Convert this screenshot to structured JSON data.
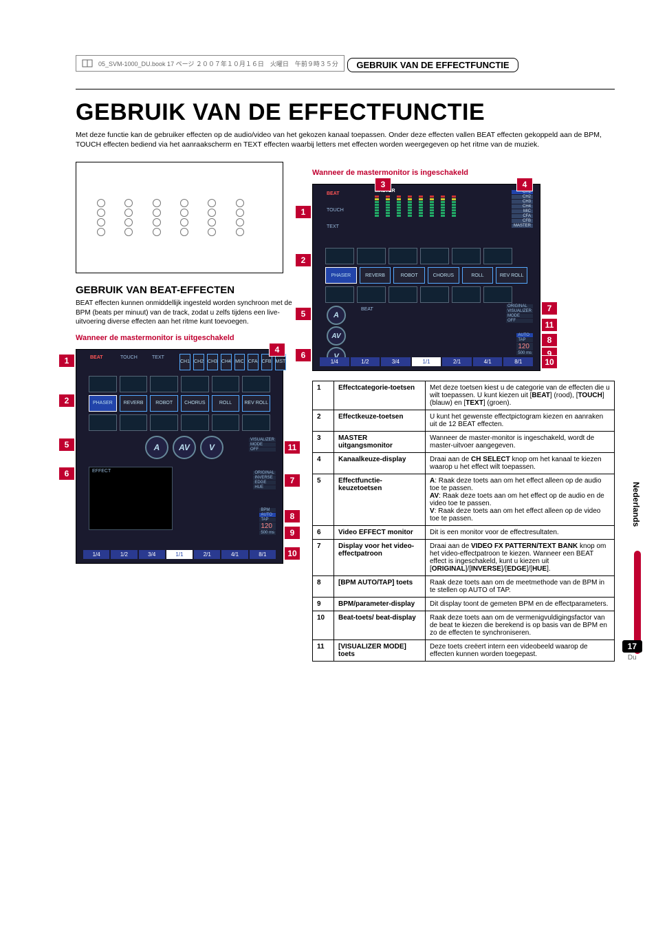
{
  "print_header": {
    "text": "05_SVM-1000_DU.book  17 ページ  ２００７年１０月１６日　火曜日　午前９時３５分"
  },
  "section_tab": "GEBRUIK VAN DE EFFECTFUNCTIE",
  "title": "GEBRUIK VAN DE EFFECTFUNCTIE",
  "intro": "Met deze functie kan de gebruiker effecten op de audio/video van het gekozen kanaal toepassen. Onder deze effecten vallen BEAT effecten gekoppeld aan de BPM, TOUCH effecten bediend via het aanraakscherm en TEXT effecten waarbij letters met effecten worden weergegeven op het ritme van de muziek.",
  "subhead": "GEBRUIK VAN BEAT-EFFECTEN",
  "subhead_body": "BEAT effecten kunnen onmiddellijk ingesteld worden synchroon met de BPM (beats per minuut) van de track, zodat u zelfs tijdens een live-uitvoering diverse effecten aan het ritme kunt toevoegen.",
  "red_off": "Wanneer de mastermonitor is uitgeschakeld",
  "red_on": "Wanneer de mastermonitor is ingeschakeld",
  "diagram_small": {
    "tabs": {
      "beat": "BEAT",
      "touch": "TOUCH",
      "text": "TEXT"
    },
    "channels": [
      "CH1",
      "CH2",
      "CH3",
      "CH4",
      "MIC",
      "CFA",
      "CFB",
      "MST"
    ],
    "effects": [
      "PHASER",
      "REVERB",
      "ROBOT",
      "CHORUS",
      "ROLL",
      "REV ROLL"
    ],
    "avv": [
      "A",
      "AV",
      "V"
    ],
    "vis": [
      "VISUALIZER",
      "MODE",
      "OFF",
      "ORIGINAL",
      "INVERSE",
      "EDGE",
      "HUE"
    ],
    "bpm_block": [
      "BPM",
      "AUTO",
      "TAP",
      "120",
      "500 ms"
    ],
    "effect_label": "EFFECT",
    "beats": [
      "1/4",
      "1/2",
      "3/4",
      "1/1",
      "2/1",
      "4/1",
      "8/1"
    ]
  },
  "diagram_large": {
    "tabs": {
      "beat": "BEAT",
      "touch": "TOUCH",
      "text": "TEXT"
    },
    "master": "MASTER",
    "channels": [
      "CH1",
      "CH2",
      "CH3",
      "CH4",
      "MIC",
      "CFA",
      "CFB",
      "MASTER"
    ],
    "effects": [
      "PHASER",
      "REVERB",
      "ROBOT",
      "CHORUS",
      "ROLL",
      "REV ROLL"
    ],
    "avv": [
      "A",
      "AV",
      "V"
    ],
    "vis": [
      "ORIGINAL",
      "VISUALIZER",
      "MODE",
      "OFF"
    ],
    "bpm_block": [
      "BPM",
      "AUTO",
      "TAP",
      "120",
      "500 ms"
    ],
    "beat_label": "BEAT",
    "beats": [
      "1/4",
      "1/2",
      "3/4",
      "1/1",
      "2/1",
      "4/1",
      "8/1"
    ]
  },
  "callouts_small": [
    "1",
    "2",
    "4",
    "5",
    "6",
    "7",
    "8",
    "9",
    "10",
    "11"
  ],
  "callouts_large": [
    "1",
    "2",
    "3",
    "4",
    "5",
    "6",
    "7",
    "8",
    "9",
    "10",
    "11"
  ],
  "table": {
    "rows": [
      {
        "n": "1",
        "name": "Effectcategorie-toetsen",
        "desc_parts": [
          {
            "t": "Met deze toetsen kiest u de categorie van de effecten die u wilt toepassen. U kunt kiezen uit ["
          },
          {
            "t": "BEAT",
            "b": true
          },
          {
            "t": "] (rood), ["
          },
          {
            "t": "TOUCH",
            "b": true
          },
          {
            "t": "] (blauw) en ["
          },
          {
            "t": "TEXT",
            "b": true
          },
          {
            "t": "] (groen)."
          }
        ]
      },
      {
        "n": "2",
        "name": "Effectkeuze-toetsen",
        "desc_parts": [
          {
            "t": "U kunt het gewenste effectpictogram kiezen en aanraken uit de 12 BEAT effecten."
          }
        ]
      },
      {
        "n": "3",
        "name": "MASTER uitgangsmonitor",
        "desc_parts": [
          {
            "t": "Wanneer de master-monitor is ingeschakeld, wordt de master-uitvoer aangegeven."
          }
        ]
      },
      {
        "n": "4",
        "name": "Kanaalkeuze-display",
        "desc_parts": [
          {
            "t": "Draai aan de "
          },
          {
            "t": "CH SELECT",
            "b": true
          },
          {
            "t": " knop om het kanaal te kiezen waarop u het effect wilt toepassen."
          }
        ]
      },
      {
        "n": "5",
        "name": "Effectfunctie-keuzetoetsen",
        "desc_parts": [
          {
            "t": "A",
            "b": true
          },
          {
            "t": ": Raak deze toets aan om het effect alleen op de audio toe te passen.\n"
          },
          {
            "t": "AV",
            "b": true
          },
          {
            "t": ": Raak deze toets aan om het effect op de audio en de video toe te passen.\n"
          },
          {
            "t": "V",
            "b": true
          },
          {
            "t": ": Raak deze toets aan om het effect alleen op de video toe te passen."
          }
        ]
      },
      {
        "n": "6",
        "name": "Video EFFECT monitor",
        "desc_parts": [
          {
            "t": "Dit is een monitor voor de effectresultaten."
          }
        ]
      },
      {
        "n": "7",
        "name": "Display voor het video-effectpatroon",
        "desc_parts": [
          {
            "t": "Draai aan de "
          },
          {
            "t": "VIDEO FX PATTERN/TEXT BANK",
            "b": true
          },
          {
            "t": " knop om het video-effectpatroon te kiezen. Wanneer een BEAT effect is ingeschakeld, kunt u kiezen uit ["
          },
          {
            "t": "ORIGINAL",
            "b": true
          },
          {
            "t": "]/["
          },
          {
            "t": "INVERSE",
            "b": true
          },
          {
            "t": "]/["
          },
          {
            "t": "EDGE",
            "b": true
          },
          {
            "t": "]/["
          },
          {
            "t": "HUE",
            "b": true
          },
          {
            "t": "]."
          }
        ]
      },
      {
        "n": "8",
        "name": "[BPM AUTO/TAP] toets",
        "desc_parts": [
          {
            "t": "Raak deze toets aan om de meetmethode van de BPM in te stellen op AUTO of TAP."
          }
        ]
      },
      {
        "n": "9",
        "name": "BPM/parameter-display",
        "desc_parts": [
          {
            "t": "Dit display toont de gemeten BPM en de effectparameters."
          }
        ]
      },
      {
        "n": "10",
        "name": "Beat-toets/ beat-display",
        "desc_parts": [
          {
            "t": "Raak deze toets aan om de vermenigvuldigingsfactor van de beat te kiezen die berekend is op basis van de BPM en zo de effecten te synchroniseren."
          }
        ]
      },
      {
        "n": "11",
        "name": "[VISUALIZER MODE] toets",
        "desc_parts": [
          {
            "t": "Deze toets creëert intern een videobeeld waarop de effecten kunnen worden toegepast."
          }
        ]
      }
    ]
  },
  "side_tab": "Nederlands",
  "page_number": "17",
  "page_lang": "Du"
}
